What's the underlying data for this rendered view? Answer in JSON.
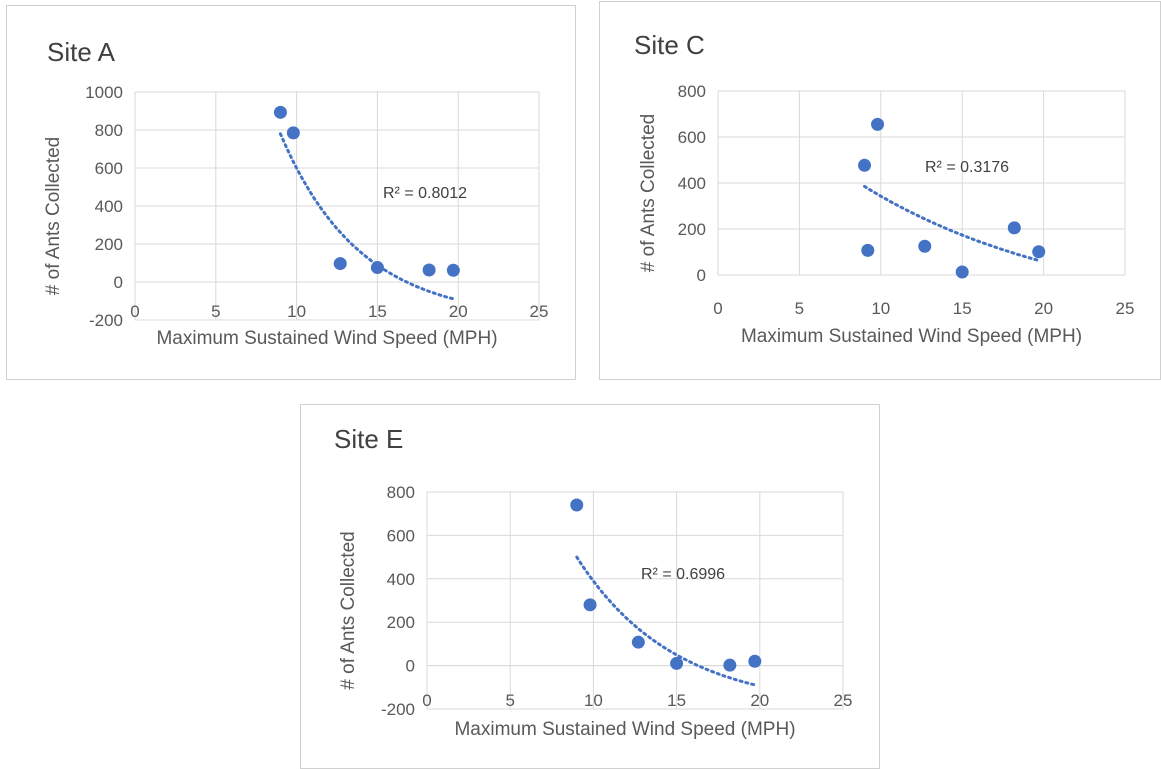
{
  "colors": {
    "series": "#4472c4",
    "grid": "#d9d9d9",
    "text": "#595959",
    "title": "#404040"
  },
  "chart_data": [
    {
      "type": "scatter",
      "title": "Site A",
      "xlabel": "Maximum Sustained Wind Speed (MPH)",
      "ylabel": "# of Ants Collected",
      "xlim": [
        0,
        25
      ],
      "ylim": [
        -200,
        1000
      ],
      "xticks": [
        0,
        5,
        10,
        15,
        20,
        25
      ],
      "yticks": [
        -200,
        0,
        200,
        400,
        600,
        800,
        1000
      ],
      "grid": true,
      "x": [
        9,
        9.8,
        12.7,
        15,
        18.2,
        19.7
      ],
      "y": [
        893,
        785,
        97,
        76,
        63,
        62
      ],
      "trendline": {
        "type": "exponential",
        "x_range": [
          9,
          19.7
        ],
        "y_start": 780,
        "y_end": -90
      },
      "annotation": "R² = 0.8012"
    },
    {
      "type": "scatter",
      "title": "Site C",
      "xlabel": "Maximum Sustained Wind Speed (MPH)",
      "ylabel": "# of Ants Collected",
      "xlim": [
        0,
        25
      ],
      "ylim": [
        0,
        800
      ],
      "xticks": [
        0,
        5,
        10,
        15,
        20,
        25
      ],
      "yticks": [
        0,
        200,
        400,
        600,
        800
      ],
      "grid": true,
      "x": [
        9,
        9.2,
        9.8,
        12.7,
        15,
        18.2,
        19.7
      ],
      "y": [
        477,
        107,
        655,
        125,
        13,
        205,
        101
      ],
      "trendline": {
        "type": "power",
        "x_range": [
          9,
          19.7
        ],
        "y_start": 385,
        "y_end": 62
      },
      "annotation": "R² = 0.3176"
    },
    {
      "type": "scatter",
      "title": "Site E",
      "xlabel": "Maximum Sustained Wind Speed (MPH)",
      "ylabel": "# of Ants Collected",
      "xlim": [
        0,
        25
      ],
      "ylim": [
        -200,
        800
      ],
      "xticks": [
        0,
        5,
        10,
        15,
        20,
        25
      ],
      "yticks": [
        -200,
        0,
        200,
        400,
        600,
        800
      ],
      "grid": true,
      "x": [
        9,
        9.8,
        12.7,
        15,
        18.2,
        19.7
      ],
      "y": [
        740,
        280,
        108,
        10,
        2,
        20
      ],
      "trendline": {
        "type": "exponential",
        "x_range": [
          9,
          19.7
        ],
        "y_start": 500,
        "y_end": -90
      },
      "annotation": "R² = 0.6996"
    }
  ]
}
